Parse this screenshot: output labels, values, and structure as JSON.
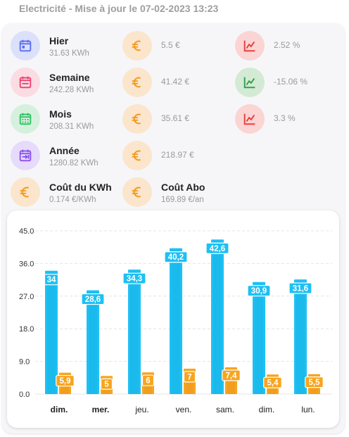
{
  "header": {
    "title": "Electricité - Mise à jour le 07-02-2023 13:23"
  },
  "stats": [
    {
      "label": "Hier",
      "sub": "31.63 KWh",
      "icon": "calendar-today-icon",
      "color": "#5b6cf0"
    },
    {
      "label": "Semaine",
      "sub": "242.28 KWh",
      "icon": "calendar-week-icon",
      "color": "#e9416f"
    },
    {
      "label": "Mois",
      "sub": "208.31 KWh",
      "icon": "calendar-month-icon",
      "color": "#2fbf62"
    },
    {
      "label": "Année",
      "sub": "1280.82 KWh",
      "icon": "calendar-range-icon",
      "color": "#8a4ff0"
    }
  ],
  "costs": [
    "5.5 €",
    "41.42 €",
    "35.61 €",
    "218.97 €"
  ],
  "trends": [
    {
      "value": "2.52 %",
      "icon": "trend-up-icon",
      "color": "#e53935"
    },
    {
      "value": "-15.06 %",
      "icon": "trend-up-icon",
      "color": "#2e9b46"
    },
    {
      "value": "3.3 %",
      "icon": "trend-up-icon",
      "color": "#e53935"
    }
  ],
  "price": {
    "label": "Coût du KWh",
    "sub": "0.174 €/KWh"
  },
  "subscription": {
    "label": "Coût Abo",
    "sub": "169.89 €/an"
  },
  "colors": {
    "energy": "#1ec0f3",
    "cost": "#f7a51f",
    "euro": "#f29a1d"
  },
  "chart_data": {
    "type": "bar",
    "categories": [
      "dim.",
      "mer.",
      "jeu.",
      "ven.",
      "sam.",
      "dim.",
      "lun."
    ],
    "series": [
      {
        "values": [
          34,
          28.6,
          34.3,
          40.2,
          42.6,
          30.9,
          31.6
        ]
      },
      {
        "values": [
          5.9,
          5,
          6,
          7,
          7.4,
          5.4,
          5.5
        ]
      }
    ],
    "value_labels": [
      [
        "34",
        "28,6",
        "34,3",
        "40,2",
        "42,6",
        "30,9",
        "31,6"
      ],
      [
        "5,9",
        "5",
        "6",
        "7",
        "7,4",
        "5,4",
        "5,5"
      ]
    ],
    "yticks": [
      "45.0",
      "36.0",
      "27.0",
      "18.0",
      "9.0",
      "0.0"
    ],
    "ylim": [
      0,
      45
    ],
    "grid": true
  }
}
